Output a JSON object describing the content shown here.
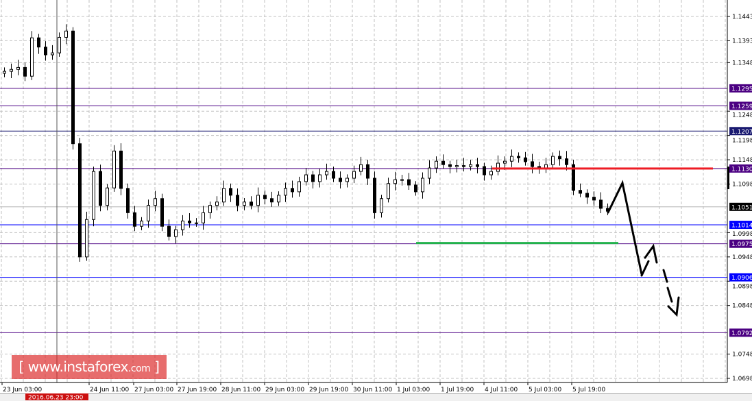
{
  "chart_data": {
    "type": "candlestick",
    "title": "",
    "ylim": [
      1.069,
      1.1477
    ],
    "grid": true,
    "y_ticks": [
      "1.1443",
      "1.1393",
      "1.1348",
      "1.1248",
      "1.1198",
      "1.1148",
      "1.1098",
      "1.0998",
      "1.0948",
      "1.0898",
      "1.0848",
      "1.0748",
      "1.0698"
    ],
    "x_ticks": [
      "23 Jun 03:00",
      "24 Jun 11:00",
      "27 Jun 03:00",
      "27 Jun 19:00",
      "28 Jun 11:00",
      "29 Jun 03:00",
      "29 Jun 19:00",
      "30 Jun 11:00",
      "1 Jul 03:00",
      "1 Jul 19:00",
      "4 Jul 11:00",
      "5 Jul 03:00",
      "5 Jul 19:00"
    ],
    "crosshair_label": "2016.06.23 23:00",
    "current_price": {
      "value": 1.1051,
      "label": "1.1051",
      "color": "#000000"
    },
    "levels": [
      {
        "value": 1.1295,
        "label": "1.1295",
        "color": "#4b0082"
      },
      {
        "value": 1.1259,
        "label": "1.1259",
        "color": "#4b0082"
      },
      {
        "value": 1.1207,
        "label": "1.1207",
        "color": "#191970"
      },
      {
        "value": 1.113,
        "label": "1.1130",
        "color": "#4b0082"
      },
      {
        "value": 1.1014,
        "label": "1.1014",
        "color": "#0000ff"
      },
      {
        "value": 1.0975,
        "label": "1.0975",
        "color": "#4b0082"
      },
      {
        "value": 1.0906,
        "label": "1.0906",
        "color": "#0000ff"
      },
      {
        "value": 1.0792,
        "label": "1.0792",
        "color": "#4b0082"
      }
    ],
    "resistance_segment": {
      "value": 1.113,
      "color": "#ee1c25"
    },
    "support_segment": {
      "value": 1.0975,
      "color": "#22b14c"
    },
    "closes": [
      1.133,
      1.1334,
      1.1338,
      1.132,
      1.1399,
      1.138,
      1.1364,
      1.1368,
      1.14,
      1.1413,
      1.1181,
      1.0948,
      1.1025,
      1.1124,
      1.1054,
      1.109,
      1.1166,
      1.1089,
      1.1039,
      1.1011,
      1.1022,
      1.1054,
      1.1068,
      1.1011,
      1.099,
      1.1004,
      1.1022,
      1.1018,
      1.1018,
      1.1039,
      1.1054,
      1.1061,
      1.1089,
      1.1075,
      1.1054,
      1.1061,
      1.1054,
      1.1075,
      1.1068,
      1.1061,
      1.1075,
      1.1089,
      1.1082,
      1.1103,
      1.1117,
      1.1103,
      1.1117,
      1.1124,
      1.111,
      1.1103,
      1.111,
      1.1124,
      1.1138,
      1.111,
      1.1039,
      1.1068,
      1.1099,
      1.1107,
      1.1107,
      1.1096,
      1.1082,
      1.111,
      1.1131,
      1.1145,
      1.1138,
      1.1134,
      1.1136,
      1.1134,
      1.1138,
      1.1134,
      1.1117,
      1.1124,
      1.1141,
      1.1145,
      1.1155,
      1.1152,
      1.1144,
      1.1134,
      1.1131,
      1.1138,
      1.1155,
      1.115,
      1.1138,
      1.1085,
      1.1079,
      1.1071,
      1.1065,
      1.1048,
      1.1042
    ]
  },
  "watermark": {
    "bracket_open": "[",
    "site": "www.instaforex",
    "tld": ".com",
    "bracket_close": "]"
  }
}
